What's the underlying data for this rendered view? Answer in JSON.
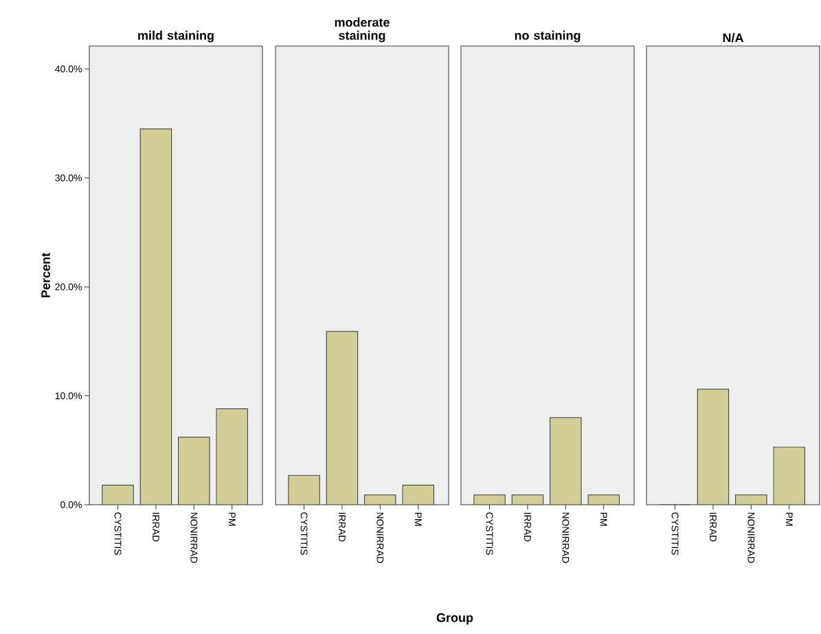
{
  "chart_data": [
    {
      "type": "bar",
      "title": "mild staining",
      "ylabel": "Percent",
      "categories": [
        "CYSTITIS",
        "IRRAD",
        "NONIRRAD",
        "PM"
      ],
      "values": [
        1.8,
        34.5,
        6.2,
        8.8
      ],
      "color": "#d3cd98",
      "ylim": [
        0,
        42.1
      ],
      "yticks": [
        {
          "value": 0,
          "label": "0.0%"
        },
        {
          "value": 10,
          "label": "10.0%"
        },
        {
          "value": 20,
          "label": "20.0%"
        },
        {
          "value": 30,
          "label": "30.0%"
        },
        {
          "value": 40,
          "label": "40.0%"
        }
      ]
    },
    {
      "type": "bar",
      "title": "moderate staining",
      "xlabel": "Group",
      "categories": [
        "CYSTITIS",
        "IRRAD",
        "NONIRRAD",
        "PM"
      ],
      "values": [
        2.7,
        15.9,
        0.9,
        1.8
      ],
      "color": "#d3cd98",
      "ylim": [
        0,
        42.1
      ],
      "tick_labels": "x"
    },
    {
      "type": "bar",
      "title": "no staining",
      "categories": [
        "CYSTITIS",
        "IRRAD",
        "NONIRRAD",
        "PM"
      ],
      "values": [
        0.9,
        0.9,
        8.0,
        0.9
      ],
      "color": "#d3cd98",
      "ylim": [
        0,
        42.1
      ],
      "tick_labels": "x"
    },
    {
      "type": "bar",
      "title": "N/A",
      "categories": [
        "CYSTITIS",
        "IRRAD",
        "NONIRRAD",
        "PM"
      ],
      "values": [
        0,
        10.6,
        0.9,
        5.3
      ],
      "color": "#d3cd98",
      "ylim": [
        0,
        42.1
      ],
      "tick_labels": "x"
    }
  ]
}
